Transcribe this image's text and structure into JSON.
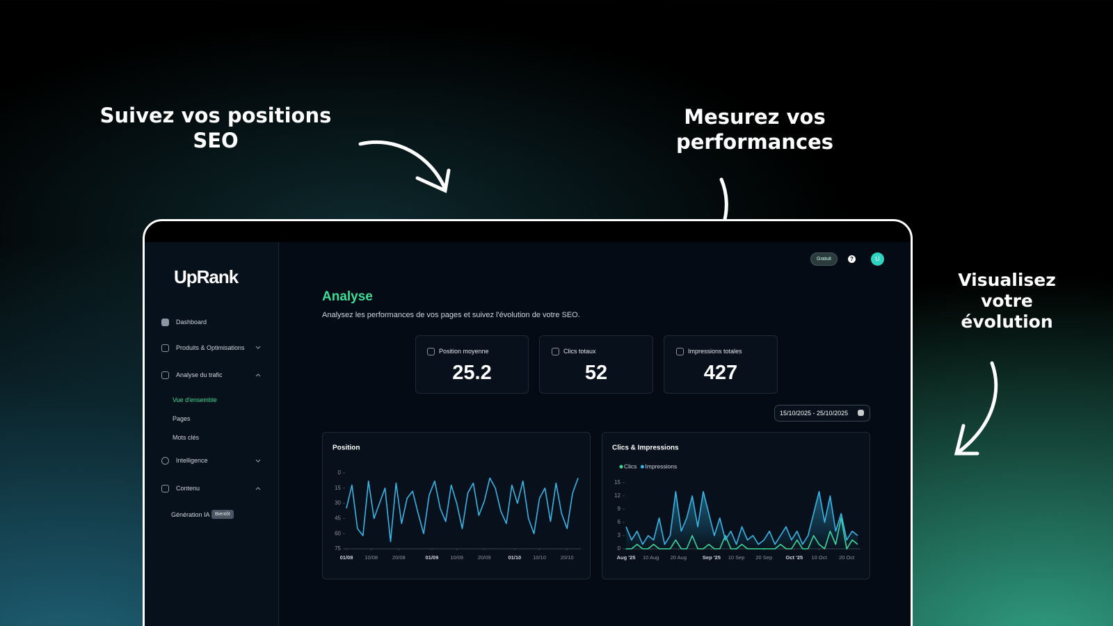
{
  "annotations": [
    "Suivez vos positions SEO",
    "Mesurez vos performances",
    "Visualisez votre évolution"
  ],
  "sidebar": {
    "logo": "UpRank",
    "nav": [
      "Dashboard",
      "Produits & Optimisations",
      "Analyse du trafic",
      "Vue d'ensemble",
      "Pages",
      "Mots clés",
      "Intelligence",
      "Contenu",
      "Génération IA"
    ],
    "badge": "Bientôt"
  },
  "header": {
    "plan": "Gratuit",
    "help": "?",
    "avatar": "U"
  },
  "page": {
    "title": "Analyse",
    "subtitle": "Analysez les performances de vos pages et suivez l'évolution de votre SEO."
  },
  "stats": [
    {
      "label": "Position moyenne",
      "value": 25.2
    },
    {
      "label": "Clics totaux",
      "value": 52
    },
    {
      "label": "Impressions totales",
      "value": 427
    }
  ],
  "date_range": "15/10/2025 - 25/10/2025",
  "chart_data": [
    {
      "type": "line",
      "title": "Position",
      "x": [
        0,
        2,
        4,
        6,
        8,
        10,
        12,
        14,
        16,
        18,
        20,
        22,
        24,
        26,
        28,
        30,
        32,
        34,
        36,
        38,
        40,
        42,
        44,
        46,
        48,
        50,
        52,
        54,
        56,
        58,
        60,
        62,
        64,
        66,
        68,
        70,
        72,
        74,
        76,
        78,
        80,
        82,
        84
      ],
      "series": [
        {
          "name": "Position",
          "color": "#38b6e8",
          "values": [
            35,
            12,
            55,
            62,
            8,
            45,
            30,
            15,
            68,
            10,
            50,
            25,
            18,
            40,
            60,
            22,
            8,
            35,
            48,
            12,
            30,
            55,
            20,
            10,
            42,
            28,
            5,
            15,
            38,
            50,
            12,
            30,
            8,
            45,
            60,
            25,
            15,
            48,
            10,
            40,
            55,
            20,
            5
          ]
        }
      ],
      "xlim": [
        0,
        85
      ],
      "xticks": [
        {
          "value": 0,
          "label": "01/08"
        },
        {
          "value": 9,
          "label": "10/08"
        },
        {
          "value": 19,
          "label": "20/08"
        },
        {
          "value": 31,
          "label": "01/09"
        },
        {
          "value": 40,
          "label": "10/09"
        },
        {
          "value": 50,
          "label": "20/09"
        },
        {
          "value": 61,
          "label": "01/10"
        },
        {
          "value": 70,
          "label": "10/10"
        },
        {
          "value": 80,
          "label": "20/10"
        }
      ],
      "ylim": [
        75,
        0
      ],
      "yticks": [
        0,
        15,
        30,
        45,
        60,
        75
      ],
      "legend": false
    },
    {
      "type": "line",
      "title": "Clics & Impressions",
      "x": [
        0,
        2,
        4,
        6,
        8,
        10,
        12,
        14,
        16,
        18,
        20,
        22,
        24,
        26,
        28,
        30,
        32,
        34,
        36,
        38,
        40,
        42,
        44,
        46,
        48,
        50,
        52,
        54,
        56,
        58,
        60,
        62,
        64,
        66,
        68,
        70,
        72,
        74,
        76,
        78,
        80,
        82,
        84
      ],
      "series": [
        {
          "name": "Clics",
          "color": "#3ddc97",
          "area": false,
          "values": [
            0,
            0,
            1,
            0,
            0,
            1,
            0,
            0,
            0,
            2,
            0,
            0,
            3,
            0,
            0,
            1,
            0,
            0,
            3,
            0,
            0,
            1,
            0,
            0,
            0,
            0,
            0,
            0,
            1,
            0,
            0,
            2,
            0,
            0,
            3,
            1,
            0,
            4,
            1,
            7,
            0,
            2,
            1
          ]
        },
        {
          "name": "Impressions",
          "color": "#38b6e8",
          "area": true,
          "values": [
            5,
            2,
            4,
            1,
            3,
            2,
            7,
            1,
            3,
            13,
            4,
            7,
            12,
            5,
            13,
            8,
            3,
            7,
            2,
            4,
            1,
            5,
            2,
            3,
            1,
            2,
            4,
            1,
            3,
            5,
            2,
            4,
            1,
            3,
            8,
            13,
            6,
            12,
            4,
            8,
            2,
            4,
            3
          ]
        }
      ],
      "xlim": [
        0,
        85
      ],
      "xticks": [
        {
          "value": 0,
          "label": "Aug '25"
        },
        {
          "value": 9,
          "label": "10 Aug"
        },
        {
          "value": 19,
          "label": "20 Aug"
        },
        {
          "value": 31,
          "label": "Sep '25"
        },
        {
          "value": 40,
          "label": "10 Sep"
        },
        {
          "value": 50,
          "label": "20 Sep"
        },
        {
          "value": 61,
          "label": "Oct '25"
        },
        {
          "value": 70,
          "label": "10 Oct"
        },
        {
          "value": 80,
          "label": "20 Oct"
        }
      ],
      "ylim": [
        0,
        15
      ],
      "yticks": [
        0,
        3,
        6,
        9,
        12,
        15
      ],
      "legend": true
    }
  ]
}
